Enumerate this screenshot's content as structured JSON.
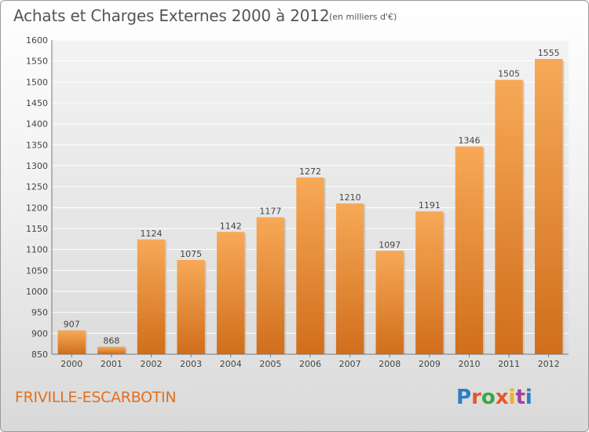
{
  "header": {
    "title": "Achats et Charges Externes 2000 à 2012",
    "unit_note": "(en milliers d'€)"
  },
  "footer": {
    "commune": "FRIVILLE-ESCARBOTIN",
    "logo_text": "Proxiti"
  },
  "colors": {
    "bar_light": "#f5a755",
    "bar_dark": "#d2711d",
    "accent_text": "#e07020"
  },
  "chart_data": {
    "type": "bar",
    "title": "Achats et Charges Externes 2000 à 2012",
    "subtitle": "(en milliers d'€)",
    "xlabel": "",
    "ylabel": "",
    "categories": [
      "2000",
      "2001",
      "2002",
      "2003",
      "2004",
      "2005",
      "2006",
      "2007",
      "2008",
      "2009",
      "2010",
      "2011",
      "2012"
    ],
    "values": [
      907,
      868,
      1124,
      1075,
      1142,
      1177,
      1272,
      1210,
      1097,
      1191,
      1346,
      1505,
      1555
    ],
    "ylim": [
      850,
      1600
    ],
    "yticks": [
      850,
      900,
      950,
      1000,
      1050,
      1100,
      1150,
      1200,
      1250,
      1300,
      1350,
      1400,
      1450,
      1500,
      1550,
      1600
    ],
    "grid": true,
    "data_labels": true
  }
}
